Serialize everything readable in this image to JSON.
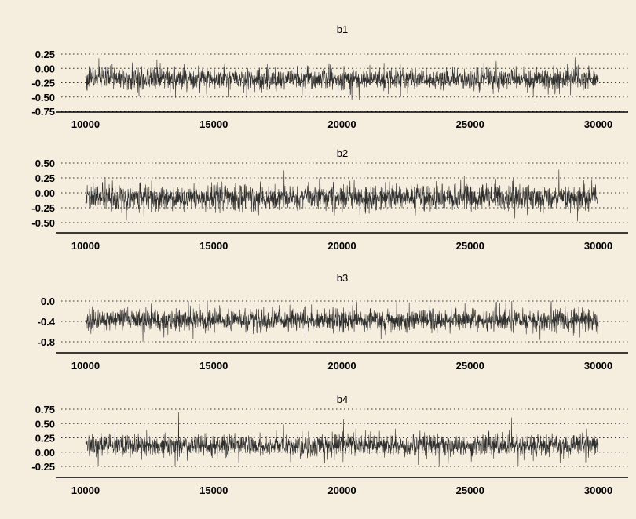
{
  "chart_data": [
    {
      "type": "line",
      "title": "b1",
      "xlabel": "",
      "ylabel": "",
      "xlim": [
        10000,
        30000
      ],
      "ylim": [
        -0.75,
        0.25
      ],
      "xticks": [
        10000,
        15000,
        20000,
        25000,
        30000
      ],
      "xtick_labels": [
        "10000",
        "15000",
        "20000",
        "25000",
        "30000"
      ],
      "yticks": [
        0.25,
        0.0,
        -0.25,
        -0.5,
        -0.75
      ],
      "ytick_labels": [
        "0.25",
        "0.00",
        "-0.25",
        "-0.50",
        "-0.75"
      ],
      "grid": "dotted horizontal",
      "series": [
        {
          "color": "#2e2e2e",
          "center": -0.18,
          "spread": 0.17
        }
      ]
    },
    {
      "type": "line",
      "title": "b2",
      "xlabel": "",
      "ylabel": "",
      "xlim": [
        10000,
        30000
      ],
      "ylim": [
        -0.5,
        0.5
      ],
      "xticks": [
        10000,
        15000,
        20000,
        25000,
        30000
      ],
      "xtick_labels": [
        "10000",
        "15000",
        "20000",
        "25000",
        "30000"
      ],
      "yticks": [
        0.5,
        0.25,
        0.0,
        -0.25,
        -0.5
      ],
      "ytick_labels": [
        "0.50",
        "0.25",
        "0.00",
        "-0.25",
        "-0.50"
      ],
      "grid": "dotted horizontal",
      "series": [
        {
          "color": "#2e2e2e",
          "center": -0.08,
          "spread": 0.19
        }
      ]
    },
    {
      "type": "line",
      "title": "b3",
      "xlabel": "",
      "ylabel": "",
      "xlim": [
        10000,
        30000
      ],
      "ylim": [
        -0.8,
        0.0
      ],
      "xticks": [
        10000,
        15000,
        20000,
        25000,
        30000
      ],
      "xtick_labels": [
        "10000",
        "15000",
        "20000",
        "25000",
        "30000"
      ],
      "yticks": [
        0.0,
        -0.4,
        -0.8
      ],
      "ytick_labels": [
        "0.0",
        "-0.4",
        "-0.8"
      ],
      "grid": "dotted horizontal",
      "series": [
        {
          "color": "#2e2e2e",
          "center": -0.38,
          "spread": 0.2
        }
      ]
    },
    {
      "type": "line",
      "title": "b4",
      "xlabel": "",
      "ylabel": "",
      "xlim": [
        10000,
        30000
      ],
      "ylim": [
        -0.25,
        0.75
      ],
      "xticks": [
        10000,
        15000,
        20000,
        25000,
        30000
      ],
      "xtick_labels": [
        "10000",
        "15000",
        "20000",
        "25000",
        "30000"
      ],
      "yticks": [
        0.75,
        0.5,
        0.25,
        0.0,
        -0.25
      ],
      "ytick_labels": [
        "0.75",
        "0.50",
        "0.25",
        "0.00",
        "-0.25"
      ],
      "grid": "dotted horizontal",
      "series": [
        {
          "color": "#2e2e2e",
          "center": 0.12,
          "spread": 0.17
        }
      ]
    }
  ]
}
